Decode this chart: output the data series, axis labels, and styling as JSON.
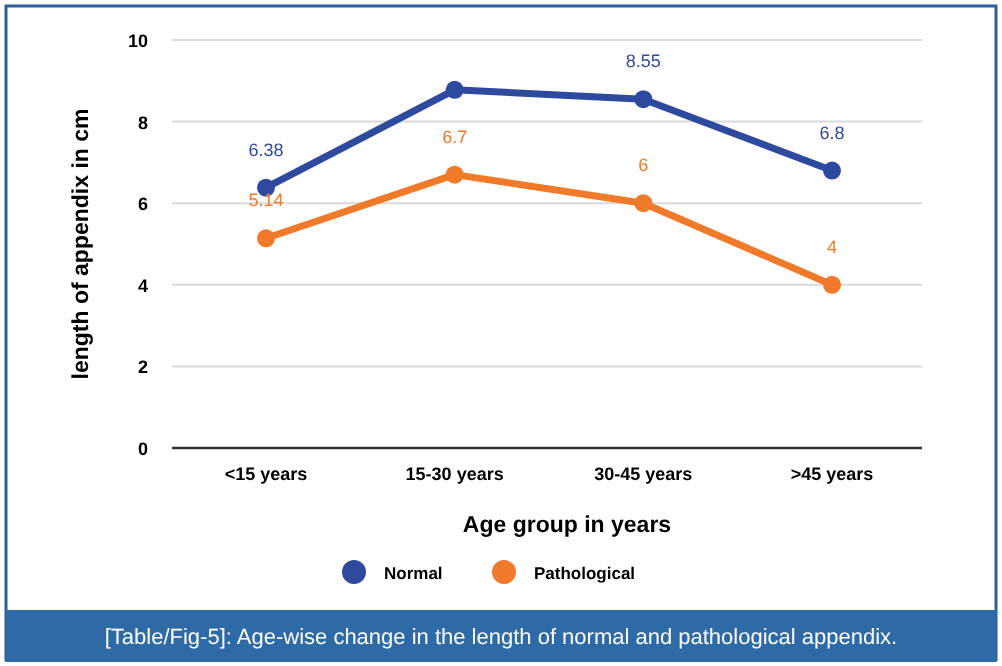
{
  "chart_data": {
    "type": "line",
    "xlabel": "Age group in years",
    "ylabel": "length of appendix in cm",
    "categories": [
      "<15 years",
      "15-30 years",
      "30-45 years",
      ">45 years"
    ],
    "series": [
      {
        "name": "Normal",
        "color": "#2e4a9e",
        "values": [
          6.38,
          8.78,
          8.55,
          6.8
        ],
        "value_labels": [
          "6.38",
          null,
          "8.55",
          "6.8"
        ]
      },
      {
        "name": "Pathological",
        "color": "#f07a2a",
        "values": [
          5.14,
          6.7,
          6,
          4
        ],
        "value_labels": [
          "5.14",
          "6.7",
          "6",
          "4"
        ]
      }
    ],
    "ylim": [
      0,
      10
    ],
    "yticks": [
      0,
      2,
      4,
      6,
      8,
      10
    ],
    "grid": "y",
    "legend": "bottom",
    "marker": "circle",
    "line_style": "solid",
    "annotations": [
      "[Table/Fig-5]: Age-wise change in the length of normal and pathological appendix."
    ]
  }
}
